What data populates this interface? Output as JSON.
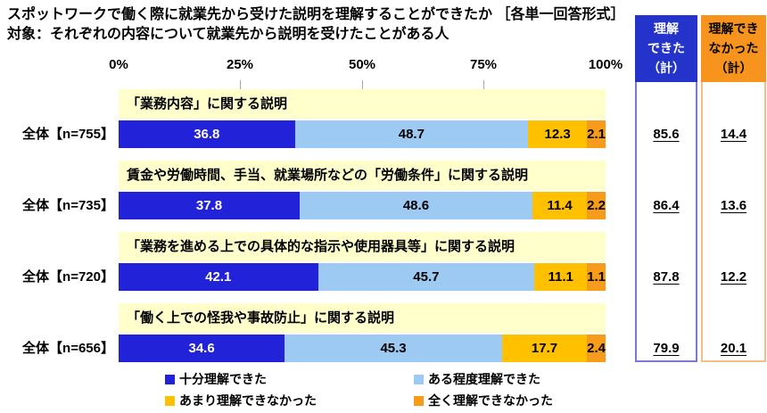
{
  "title": {
    "line1": "スポットワークで働く際に就業先から受けた説明を理解することができたか ［各単一回答形式］",
    "line2": "対象：それぞれの内容について就業先から説明を受けたことがある人"
  },
  "chart_data": {
    "type": "bar",
    "variant": "horizontal-stacked-100pct",
    "unit": "%",
    "xlim": [
      0,
      100
    ],
    "x_ticks": [
      "0%",
      "25%",
      "50%",
      "75%",
      "100%"
    ],
    "legend_position": "bottom",
    "series_labels": [
      "十分理解できた",
      "ある程度理解できた",
      "あまり理解できなかった",
      "全く理解できなかった"
    ],
    "rows": [
      {
        "category": "「業務内容」に関する説明",
        "respondent": "全体【n=755】",
        "values": [
          36.8,
          48.7,
          12.3,
          2.1
        ],
        "understood_total": 85.6,
        "not_understood_total": 14.4
      },
      {
        "category": "賃金や労働時間、手当、就業場所などの「労働条件」に関する説明",
        "respondent": "全体【n=735】",
        "values": [
          37.8,
          48.6,
          11.4,
          2.2
        ],
        "understood_total": 86.4,
        "not_understood_total": 13.6
      },
      {
        "category": "「業務を進める上での具体的な指示や使用器具等」に関する説明",
        "respondent": "全体【n=720】",
        "values": [
          42.1,
          45.7,
          11.1,
          1.1
        ],
        "understood_total": 87.8,
        "not_understood_total": 12.2
      },
      {
        "category": "「働く上での怪我や事故防止」に関する説明",
        "respondent": "全体【n=656】",
        "values": [
          34.6,
          45.3,
          17.7,
          2.4
        ],
        "understood_total": 79.9,
        "not_understood_total": 20.1
      }
    ]
  },
  "summary_columns": {
    "understood": {
      "header_lines": [
        "理解",
        "できた",
        "（計）"
      ]
    },
    "not_understood": {
      "header_lines": [
        "理解でき",
        "なかった",
        "（計）"
      ]
    }
  },
  "legend": {
    "items": [
      {
        "label": "十分理解できた"
      },
      {
        "label": "ある程度理解できた"
      },
      {
        "label": "あまり理解できなかった"
      },
      {
        "label": "全く理解できなかった"
      }
    ]
  },
  "colors": {
    "seg1": "#2222D8",
    "seg2": "#9CCAF3",
    "seg3": "#FFC000",
    "seg4": "#F79B1B",
    "category_bg": "#FFFFCC",
    "understood_header_bg": "#2433C9",
    "not_understood_header_bg": "#F7941D"
  }
}
